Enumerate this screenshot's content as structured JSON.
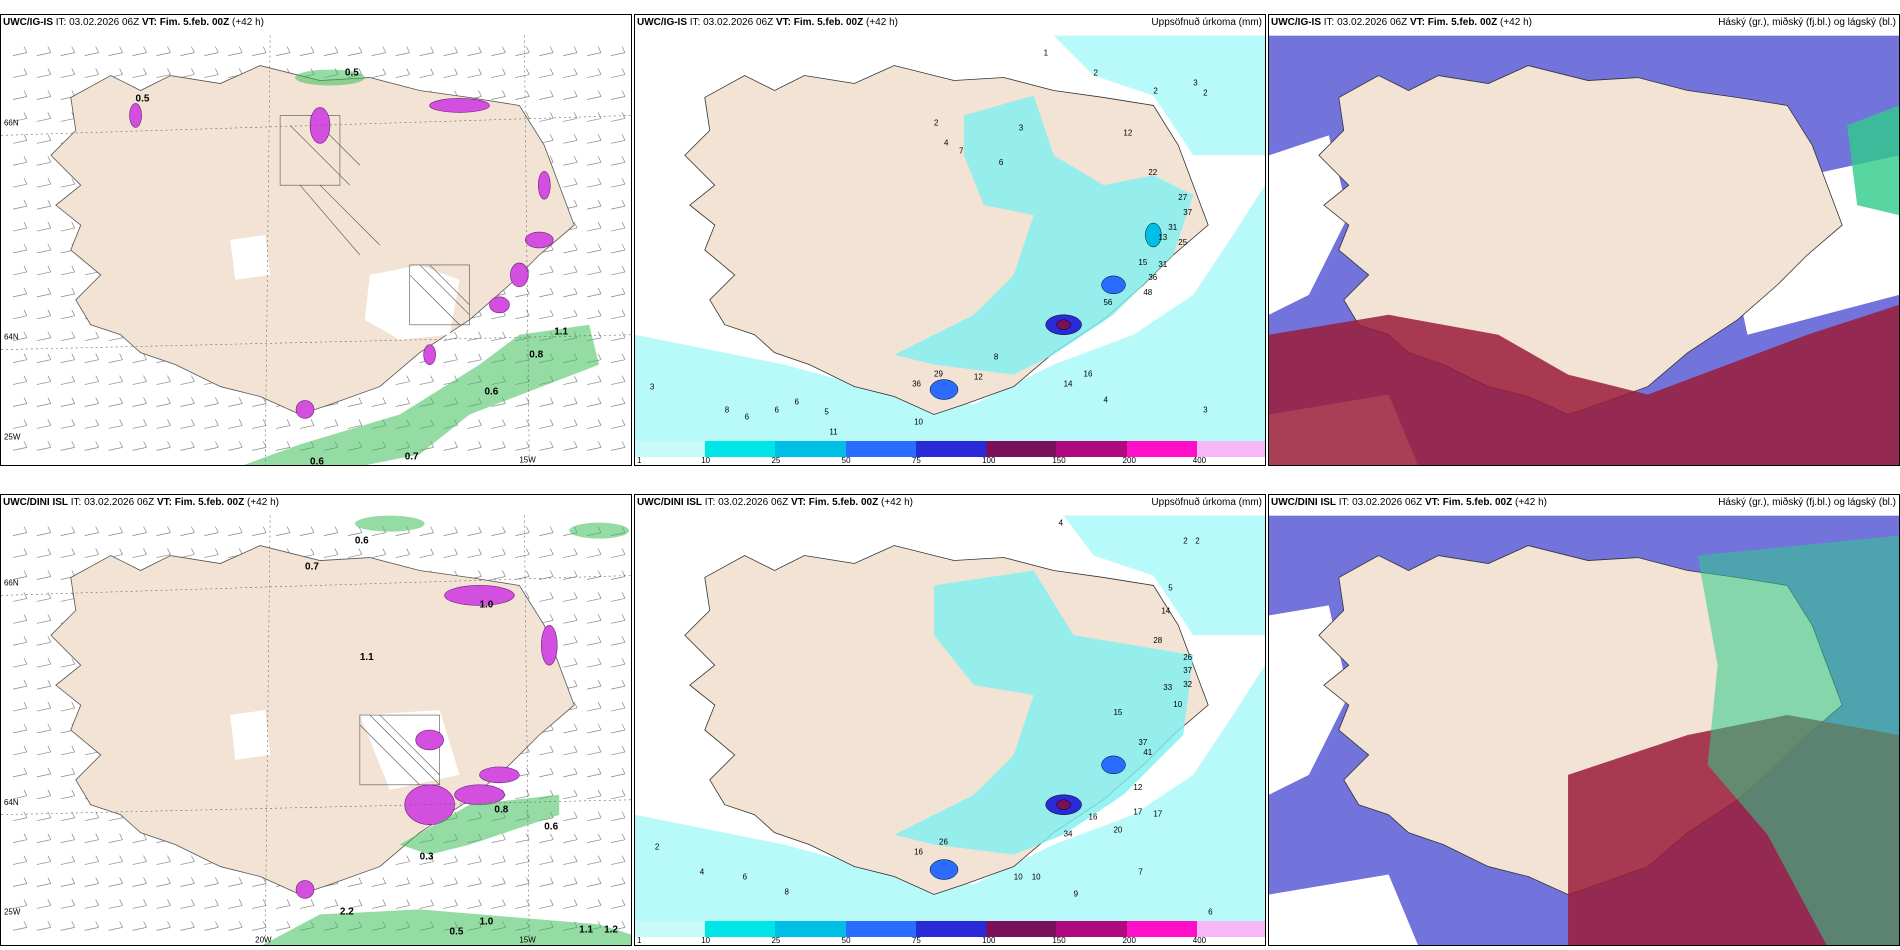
{
  "panels": [
    {
      "model": "UWC/IG-IS",
      "it_label": "IT:",
      "it": "03.02.2026 06Z",
      "vt_label": "VT:",
      "vt": "Fim. 5.feb. 00Z",
      "lead": "(+42 h)",
      "right_title": ""
    },
    {
      "model": "UWC/IG-IS",
      "it_label": "IT:",
      "it": "03.02.2026 06Z",
      "vt_label": "VT:",
      "vt": "Fim. 5.feb. 00Z",
      "lead": "(+42 h)",
      "right_title": "Uppsöfnuð úrkoma (mm)"
    },
    {
      "model": "UWC/IG-IS",
      "it_label": "IT:",
      "it": "03.02.2026 06Z",
      "vt_label": "VT:",
      "vt": "Fim. 5.feb. 00Z",
      "lead": "(+42 h)",
      "right_title": "Háský (gr.), miðský (fj.bl.) og lágský (bl.)"
    },
    {
      "model": "UWC/DINI ISL",
      "it_label": "IT:",
      "it": "03.02.2026 06Z",
      "vt_label": "VT:",
      "vt": "Fim. 5.feb. 00Z",
      "lead": "(+42 h)",
      "right_title": ""
    },
    {
      "model": "UWC/DINI ISL",
      "it_label": "IT:",
      "it": "03.02.2026 06Z",
      "vt_label": "VT:",
      "vt": "Fim. 5.feb. 00Z",
      "lead": "(+42 h)",
      "right_title": "Uppsöfnuð úrkoma (mm)"
    },
    {
      "model": "UWC/DINI ISL",
      "it_label": "IT:",
      "it": "03.02.2026 06Z",
      "vt_label": "VT:",
      "vt": "Fim. 5.feb. 00Z",
      "lead": "(+42 h)",
      "right_title": "Háský (gr.), miðský (fj.bl.) og lágský (bl.)"
    }
  ],
  "lat_labels": [
    "66N",
    "64N"
  ],
  "lon_labels": [
    "25W",
    "20W",
    "15W"
  ],
  "precip_legend": {
    "labels": [
      "1",
      "10",
      "25",
      "50",
      "75",
      "100",
      "150",
      "200",
      "400"
    ],
    "colors": [
      "#c8fafa",
      "#00e6e6",
      "#00bfe6",
      "#2a6cff",
      "#2a2ad8",
      "#7a0f5c",
      "#b0087e",
      "#ff10c8",
      "#f8b8f8"
    ]
  },
  "colors": {
    "land": "#f2e3d4",
    "ocean": "#ffffff",
    "precip_sea": "#b8fafa",
    "high_cloud": "#2ecc8a",
    "mid_cloud": "#5b5bd6",
    "low_cloud": "#9a1c3a",
    "snow": "#d24fe0",
    "rain": "#3cbf5a"
  },
  "panel1_values": [
    "0.5",
    "0.5",
    "1.1",
    "0.8",
    "0.6",
    "0.6",
    "0.7"
  ],
  "panel2_values": [
    "1",
    "2",
    "3",
    "2",
    "2",
    "2",
    "4",
    "7",
    "6",
    "3",
    "12",
    "22",
    "27",
    "37",
    "31",
    "25",
    "15",
    "13",
    "31",
    "56",
    "36",
    "48",
    "29",
    "36",
    "12",
    "16",
    "14",
    "8",
    "6",
    "5",
    "4",
    "3",
    "11",
    "10",
    "6",
    "8",
    "6",
    "3"
  ],
  "panel4_values": [
    "0.6",
    "0.7",
    "1.0",
    "1.1",
    "0.8",
    "0.6",
    "0.3",
    "2.2",
    "1.0",
    "0.5",
    "1.1",
    "1.2"
  ],
  "panel5_values": [
    "4",
    "2",
    "2",
    "5",
    "14",
    "28",
    "26",
    "37",
    "33",
    "32",
    "10",
    "15",
    "37",
    "41",
    "12",
    "17",
    "17",
    "20",
    "34",
    "16",
    "26",
    "16",
    "10",
    "9",
    "7",
    "6",
    "8",
    "10",
    "2",
    "4",
    "6"
  ]
}
